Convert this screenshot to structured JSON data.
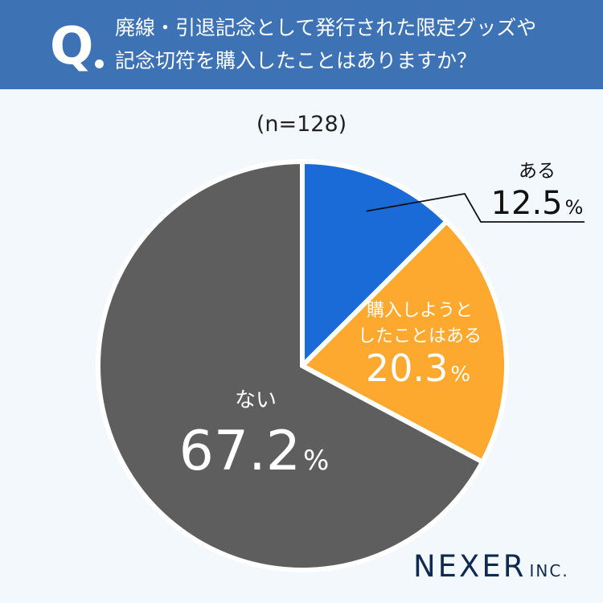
{
  "question": {
    "mark": "Q",
    "line1": "廃線・引退記念として発行された限定グッズや",
    "line2": "記念切符を購入したことはありますか？"
  },
  "sample_size": "(n=128)",
  "logo": {
    "main": "NEXER",
    "suffix": "INC."
  },
  "colors": {
    "header": "#3d72b5",
    "background": "#f3f8fc",
    "yes": "#1a6bd8",
    "tried": "#fda82f",
    "no": "#5e5e5e",
    "separator": "#ffffff",
    "text_dark": "#111111",
    "text_light": "#ffffff",
    "logo": "#0f2a50"
  },
  "chart_data": {
    "type": "pie",
    "start": "12 o'clock",
    "direction": "clockwise",
    "unit": "%",
    "slices": [
      {
        "label": "ある",
        "value": 12.5,
        "value_text": "12.5",
        "color": "#1a6bd8"
      },
      {
        "label": "購入しようとしたことはある",
        "label_lines": [
          "購入しようと",
          "したことはある"
        ],
        "value": 20.3,
        "value_text": "20.3",
        "color": "#fda82f"
      },
      {
        "label": "ない",
        "value": 67.2,
        "value_text": "67.2",
        "color": "#5e5e5e"
      }
    ]
  }
}
